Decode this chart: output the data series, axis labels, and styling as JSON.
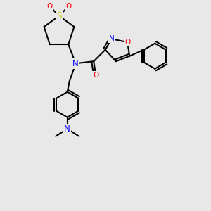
{
  "background_color": "#e8e8e8",
  "atom_colors": {
    "C": "#000000",
    "N": "#0000ff",
    "O": "#ff0000",
    "S": "#cccc00",
    "H": "#000000"
  },
  "bond_color": "#000000",
  "bond_width": 1.5,
  "font_size": 7.5,
  "figsize": [
    3.0,
    3.0
  ],
  "dpi": 100
}
